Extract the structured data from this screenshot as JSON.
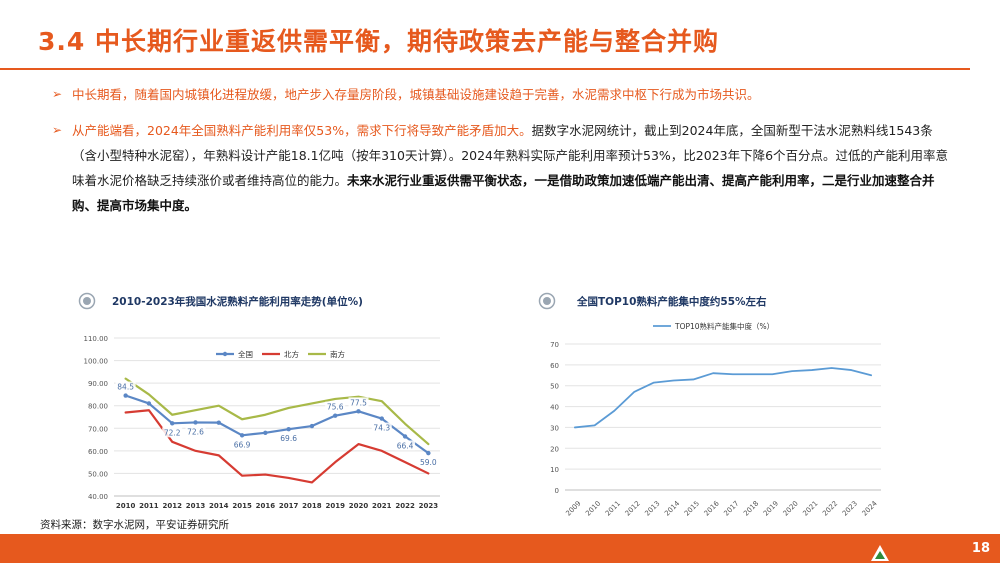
{
  "page": {
    "title": "3.4 中长期行业重返供需平衡，期待政策去产能与整合并购",
    "source": "资料来源：数字水泥网，平安证券研究所",
    "page_number": "18"
  },
  "bullets": {
    "b1": "中长期看，随着国内城镇化进程放缓，地产步入存量房阶段，城镇基础设施建设趋于完善，水泥需求中枢下行成为市场共识。",
    "b2_highlight": "从产能端看，2024年全国熟料产能利用率仅53%，需求下行将导致产能矛盾加大。",
    "b2_normal": "据数字水泥网统计，截止到2024年底，全国新型干法水泥熟料线1543条（含小型特种水泥窑），年熟料设计产能18.1亿吨（按年310天计算）。2024年熟料实际产能利用率预计53%，比2023年下降6个百分点。过低的产能利用率意味着水泥价格缺乏持续涨价或者维持高位的能力。",
    "b2_bold": "未来水泥行业重返供需平衡状态，一是借助政策加速低端产能出清、提高产能利用率，二是行业加速整合并购、提高市场集中度。"
  },
  "chart_data": [
    {
      "type": "line",
      "title": "2010-2023年我国水泥熟料产能利用率走势(单位%)",
      "x": [
        "2010",
        "2011",
        "2012",
        "2013",
        "2014",
        "2015",
        "2016",
        "2017",
        "2018",
        "2019",
        "2020",
        "2021",
        "2022",
        "2023"
      ],
      "ylim": [
        40,
        110
      ],
      "yticks": [
        "40.00",
        "50.00",
        "60.00",
        "70.00",
        "80.00",
        "90.00",
        "100.00",
        "110.00"
      ],
      "legend_position": "top",
      "series": [
        {
          "name": "全国",
          "color": "#5b87c5",
          "values": [
            84.5,
            81,
            72.2,
            72.6,
            72.5,
            66.9,
            68,
            69.6,
            71,
            75.6,
            77.5,
            74.3,
            66.4,
            59.0
          ]
        },
        {
          "name": "北方",
          "color": "#d63b32",
          "values": [
            77,
            78,
            64,
            60,
            58,
            49,
            49.5,
            48,
            46,
            55,
            63,
            60,
            55,
            50
          ]
        },
        {
          "name": "南方",
          "color": "#a8b948",
          "values": [
            92,
            85,
            76,
            78,
            80,
            74,
            76,
            79,
            81,
            83,
            84,
            82,
            72,
            63
          ]
        }
      ],
      "data_labels": [
        "84.5",
        "72.2",
        "72.6",
        "66.9",
        "69.6",
        "75.6",
        "77.5",
        "74.3",
        "66.4",
        "59.0"
      ]
    },
    {
      "type": "line",
      "title": "全国TOP10熟料产能集中度约55%左右",
      "x": [
        "2009",
        "2010",
        "2011",
        "2012",
        "2013",
        "2014",
        "2015",
        "2016",
        "2017",
        "2018",
        "2019",
        "2020",
        "2021",
        "2022",
        "2023",
        "2024"
      ],
      "ylim": [
        0,
        70
      ],
      "yticks": [
        "0",
        "10",
        "20",
        "30",
        "40",
        "50",
        "60",
        "70"
      ],
      "legend_position": "top",
      "series": [
        {
          "name": "TOP10熟料产能集中度（%）",
          "color": "#5b9bd5",
          "values": [
            30,
            31,
            38,
            47,
            51.5,
            52.5,
            53,
            56,
            55.5,
            55.5,
            55.5,
            57,
            57.5,
            58.5,
            57.5,
            55
          ]
        }
      ]
    }
  ]
}
